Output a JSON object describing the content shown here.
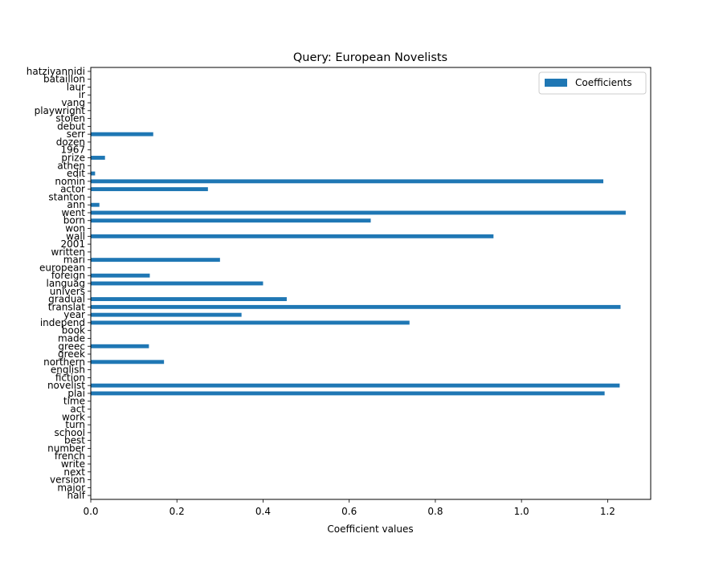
{
  "chart_data": {
    "type": "bar",
    "orientation": "horizontal",
    "title": "Query: European Novelists",
    "xlabel": "Coefficient values",
    "ylabel": "",
    "xlim": [
      0,
      1.3
    ],
    "xticks": [
      0.0,
      0.2,
      0.4,
      0.6,
      0.8,
      1.0,
      1.2
    ],
    "xtick_labels": [
      "0.0",
      "0.2",
      "0.4",
      "0.6",
      "0.8",
      "1.0",
      "1.2"
    ],
    "grid": false,
    "legend": {
      "placement": "top-right",
      "entries": [
        "Coefficients"
      ]
    },
    "bar_color": "#1f77b4",
    "categories": [
      "half",
      "major",
      "version",
      "next",
      "write",
      "french",
      "number",
      "best",
      "school",
      "turn",
      "work",
      "act",
      "time",
      "plai",
      "novelist",
      "fiction",
      "english",
      "northern",
      "greek",
      "greec",
      "made",
      "book",
      "independ",
      "year",
      "translat",
      "gradual",
      "univers",
      "languag",
      "foreign",
      "european",
      "mari",
      "written",
      "2001",
      "wall",
      "won",
      "born",
      "went",
      "ann",
      "stanton",
      "actor",
      "nomin",
      "edit",
      "athen",
      "prize",
      "1967",
      "dozen",
      "serr",
      "debut",
      "stolen",
      "playwright",
      "vang",
      "ir",
      "laur",
      "bataillon",
      "hatziyannidi"
    ],
    "series": [
      {
        "name": "Coefficients",
        "values": [
          0,
          0,
          0,
          0,
          0,
          0,
          0,
          0,
          0,
          0,
          0,
          0,
          0,
          1.193,
          1.228,
          0,
          0,
          0.17,
          0,
          0.135,
          0,
          0,
          0.74,
          0.35,
          1.23,
          0.455,
          0,
          0.4,
          0.137,
          0,
          0.3,
          0,
          0,
          0.935,
          0,
          0.65,
          1.242,
          0.02,
          0,
          0.272,
          1.19,
          0.01,
          0,
          0.033,
          0,
          0,
          0.145,
          0,
          0,
          0,
          0,
          0,
          0,
          0,
          0
        ]
      }
    ]
  }
}
